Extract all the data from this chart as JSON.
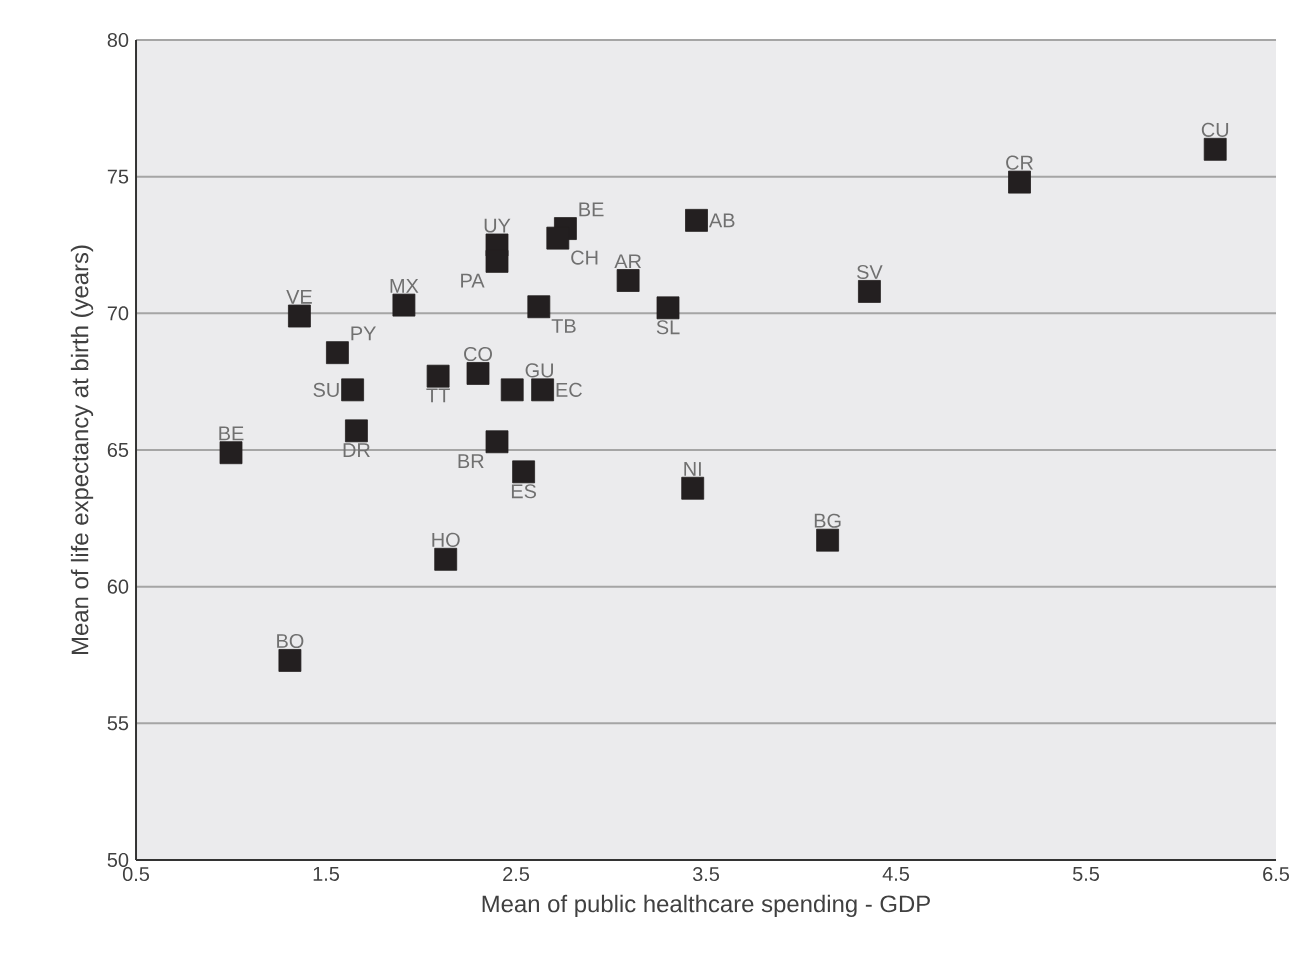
{
  "chart_data": {
    "type": "scatter",
    "xlabel": "Mean of public healthcare spending - GDP",
    "ylabel": "Mean of life expectancy at birth (years)",
    "xlim": [
      0.5,
      6.5
    ],
    "xticks": [
      0.5,
      1.5,
      2.5,
      3.5,
      4.5,
      5.5,
      6.5
    ],
    "ylim": [
      50,
      80
    ],
    "yticks": [
      50,
      55,
      60,
      65,
      70,
      75,
      80
    ],
    "grid": "y",
    "marker": "square",
    "series": [
      {
        "color": "#231f20",
        "x": [
          6.18,
          5.15,
          3.45,
          4.36,
          3.09,
          3.3,
          2.76,
          2.4,
          2.72,
          2.4,
          2.62,
          1.91,
          1.36,
          1.56,
          2.3,
          2.48,
          2.64,
          2.09,
          1.64,
          1.66,
          2.4,
          2.54,
          1.0,
          2.13,
          1.31,
          3.43,
          4.14
        ],
        "values": [
          76.0,
          74.8,
          73.4,
          70.8,
          71.2,
          70.2,
          73.1,
          72.5,
          72.75,
          71.9,
          70.24,
          70.3,
          69.9,
          68.56,
          67.8,
          67.2,
          67.2,
          67.7,
          67.2,
          65.7,
          65.3,
          64.2,
          64.9,
          61.0,
          57.3,
          63.6,
          61.7
        ]
      }
    ],
    "annotations": [
      {
        "text": "CU",
        "x": 6.18,
        "y": 76.0
      },
      {
        "text": "CR",
        "x": 5.15,
        "y": 74.8
      },
      {
        "text": "AB",
        "x": 3.45,
        "y": 73.4
      },
      {
        "text": "SV",
        "x": 4.36,
        "y": 70.8
      },
      {
        "text": "AR",
        "x": 3.09,
        "y": 71.2
      },
      {
        "text": "SL",
        "x": 3.3,
        "y": 70.2
      },
      {
        "text": "BE",
        "x": 2.76,
        "y": 73.1
      },
      {
        "text": "UY",
        "x": 2.4,
        "y": 72.5
      },
      {
        "text": "CH",
        "x": 2.72,
        "y": 72.75
      },
      {
        "text": "PA",
        "x": 2.4,
        "y": 71.9
      },
      {
        "text": "TB",
        "x": 2.62,
        "y": 70.24
      },
      {
        "text": "MX",
        "x": 1.91,
        "y": 70.3
      },
      {
        "text": "VE",
        "x": 1.36,
        "y": 69.9
      },
      {
        "text": "PY",
        "x": 1.56,
        "y": 68.56
      },
      {
        "text": "CO",
        "x": 2.3,
        "y": 67.8
      },
      {
        "text": "GU",
        "x": 2.48,
        "y": 67.2
      },
      {
        "text": "EC",
        "x": 2.64,
        "y": 67.2
      },
      {
        "text": "TT",
        "x": 2.09,
        "y": 67.7
      },
      {
        "text": "SU",
        "x": 1.64,
        "y": 67.2
      },
      {
        "text": "DR",
        "x": 1.66,
        "y": 65.7
      },
      {
        "text": "BR",
        "x": 2.4,
        "y": 65.3
      },
      {
        "text": "ES",
        "x": 2.54,
        "y": 64.2
      },
      {
        "text": "BE",
        "x": 1.0,
        "y": 64.9
      },
      {
        "text": "HO",
        "x": 2.13,
        "y": 61.0
      },
      {
        "text": "BO",
        "x": 1.31,
        "y": 57.3
      },
      {
        "text": "NI",
        "x": 3.43,
        "y": 63.6
      },
      {
        "text": "BG",
        "x": 4.14,
        "y": 61.7
      }
    ]
  }
}
